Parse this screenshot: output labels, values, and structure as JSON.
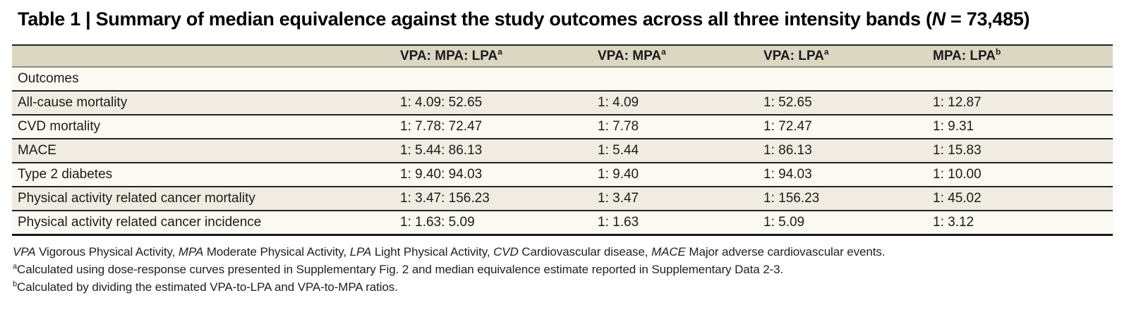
{
  "title": {
    "part1": "Table 1 | Summary of median equivalence against the study outcomes across all three intensity bands (",
    "n_symbol": "N",
    "part2": " = 73,485)"
  },
  "table": {
    "columns": [
      {
        "label": "VPA: MPA: LPA",
        "sup": "a"
      },
      {
        "label": "VPA: MPA",
        "sup": "a"
      },
      {
        "label": "VPA: LPA",
        "sup": "a"
      },
      {
        "label": "MPA: LPA",
        "sup": "b"
      }
    ],
    "section_label": "Outcomes",
    "rows": [
      {
        "outcome": "All-cause mortality",
        "vpa_mpa_lpa": "1: 4.09: 52.65",
        "vpa_mpa": "1: 4.09",
        "vpa_lpa": "1: 52.65",
        "mpa_lpa": "1: 12.87"
      },
      {
        "outcome": "CVD mortality",
        "vpa_mpa_lpa": "1: 7.78: 72.47",
        "vpa_mpa": "1: 7.78",
        "vpa_lpa": "1: 72.47",
        "mpa_lpa": "1: 9.31"
      },
      {
        "outcome": "MACE",
        "vpa_mpa_lpa": "1: 5.44: 86.13",
        "vpa_mpa": "1: 5.44",
        "vpa_lpa": "1: 86.13",
        "mpa_lpa": "1: 15.83"
      },
      {
        "outcome": "Type 2 diabetes",
        "vpa_mpa_lpa": "1: 9.40: 94.03",
        "vpa_mpa": "1: 9.40",
        "vpa_lpa": "1: 94.03",
        "mpa_lpa": "1: 10.00"
      },
      {
        "outcome": "Physical activity related cancer mortality",
        "vpa_mpa_lpa": "1: 3.47: 156.23",
        "vpa_mpa": "1: 3.47",
        "vpa_lpa": "1: 156.23",
        "mpa_lpa": "1: 45.02"
      },
      {
        "outcome": "Physical activity related cancer incidence",
        "vpa_mpa_lpa": "1: 1.63: 5.09",
        "vpa_mpa": "1: 1.63",
        "vpa_lpa": "1: 5.09",
        "mpa_lpa": "1: 3.12"
      }
    ]
  },
  "footnotes": {
    "abbreviations": [
      {
        "term": "VPA",
        "definition": " Vigorous Physical Activity, "
      },
      {
        "term": "MPA",
        "definition": " Moderate Physical Activity, "
      },
      {
        "term": "LPA",
        "definition": " Light Physical Activity, "
      },
      {
        "term": "CVD",
        "definition": " Cardiovascular disease, "
      },
      {
        "term": "MACE",
        "definition": " Major adverse cardiovascular events."
      }
    ],
    "note_a": {
      "marker": "a",
      "text": "Calculated using dose-response curves presented in Supplementary Fig. 2 and median equivalence estimate reported in Supplementary Data 2-3."
    },
    "note_b": {
      "marker": "b",
      "text": "Calculated by dividing the estimated VPA-to-LPA and VPA-to-MPA ratios."
    }
  },
  "colors": {
    "header_bg": "#dbd7c3",
    "row_shaded_bg": "#f0ece2",
    "row_plain_bg": "#fbf9f2",
    "rule_dark": "#232323",
    "header_rule": "#8c8c84"
  }
}
